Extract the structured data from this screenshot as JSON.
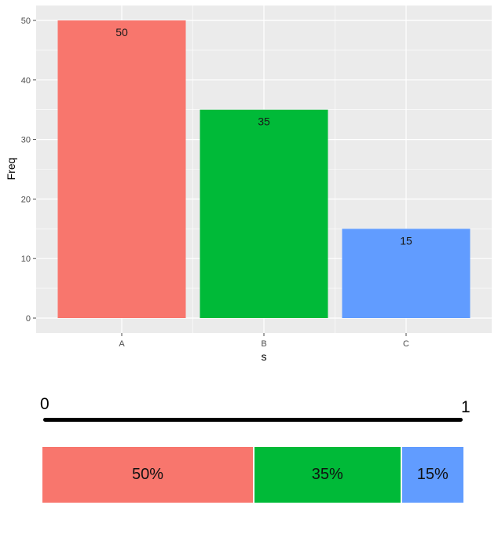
{
  "chart_data": [
    {
      "type": "bar",
      "categories": [
        "A",
        "B",
        "C"
      ],
      "values": [
        50,
        35,
        15
      ],
      "colors": [
        "#F8766D",
        "#00BA38",
        "#619CFF"
      ],
      "data_labels": [
        "50",
        "35",
        "15"
      ],
      "xlabel": "s",
      "ylabel": "Freq",
      "ylim": [
        0,
        52.5
      ],
      "yticks": [
        0,
        10,
        20,
        30,
        40,
        50
      ],
      "grid": true,
      "theme": "ggplot-grey",
      "panel_color": "#EBEBEB",
      "grid_color": "#FFFFFF"
    },
    {
      "type": "bar",
      "orientation": "stacked-horizontal",
      "categories": [
        "A",
        "B",
        "C"
      ],
      "values": [
        0.5,
        0.35,
        0.15
      ],
      "labels": [
        "50%",
        "35%",
        "15%"
      ],
      "colors": [
        "#F8766D",
        "#00BA38",
        "#619CFF"
      ],
      "scale": {
        "min_label": "0",
        "max_label": "1"
      }
    }
  ]
}
